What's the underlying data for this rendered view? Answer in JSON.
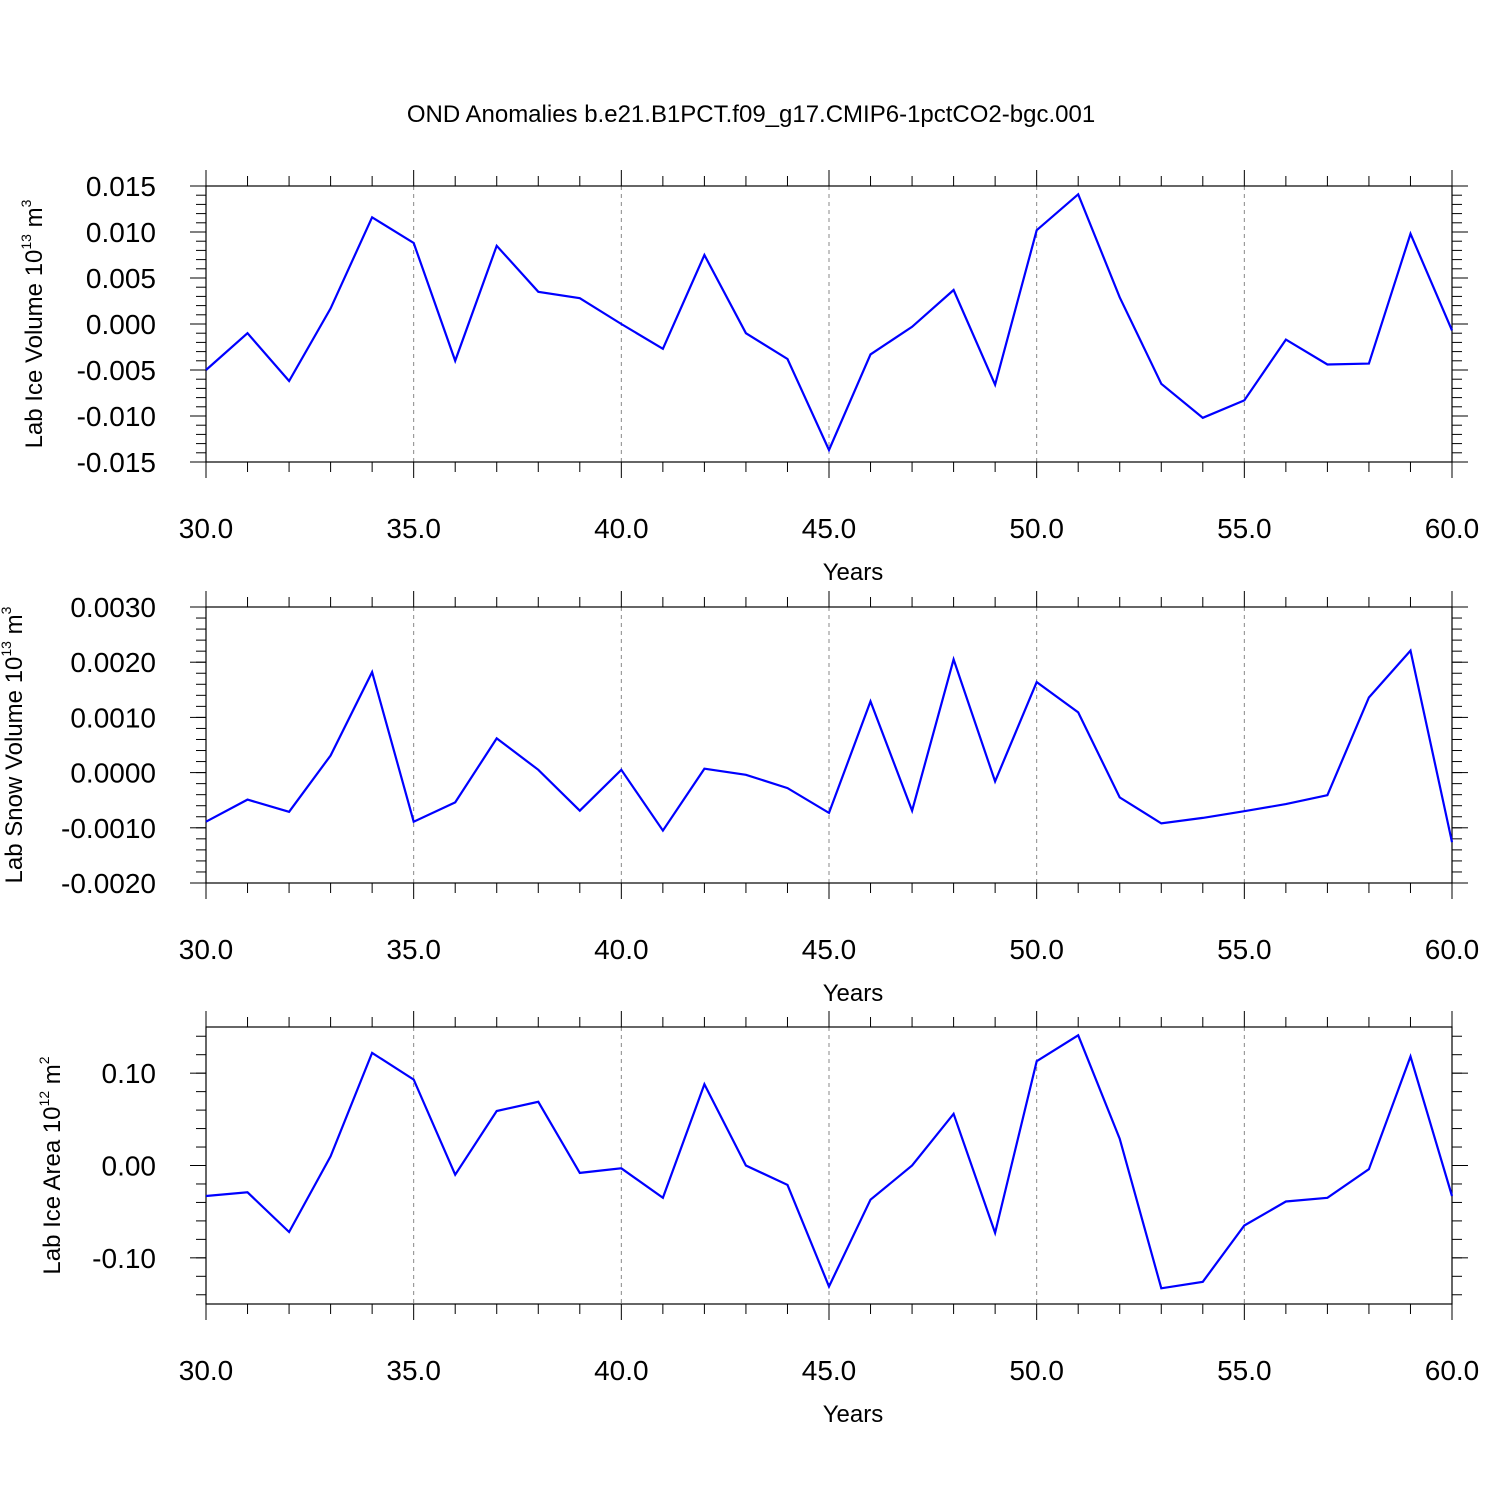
{
  "figure": {
    "title": "OND Anomalies b.e21.B1PCT.f09_g17.CMIP6-1pctCO2-bgc.001"
  },
  "chart_data": [
    {
      "type": "line",
      "ylabel": {
        "prefix": "Lab Ice Volume 10",
        "exponent": "13",
        "unit_base": " m",
        "unit_exp": "3"
      },
      "xlabel": "Years",
      "xlim": [
        30,
        60
      ],
      "ylim": [
        -0.015,
        0.015
      ],
      "xticks": [
        "30.0",
        "35.0",
        "40.0",
        "45.0",
        "50.0",
        "55.0",
        "60.0"
      ],
      "yticks": [
        {
          "value": 0.015,
          "label": "0.015"
        },
        {
          "value": 0.01,
          "label": "0.010"
        },
        {
          "value": 0.005,
          "label": "0.005"
        },
        {
          "value": 0.0,
          "label": "0.000"
        },
        {
          "value": -0.005,
          "label": "-0.005"
        },
        {
          "value": -0.01,
          "label": "-0.010"
        },
        {
          "value": -0.015,
          "label": "-0.015"
        }
      ],
      "grid": "dashed vertical at major x ticks",
      "line_color": "#0000ff",
      "x": [
        30,
        31,
        32,
        33,
        34,
        35,
        36,
        37,
        38,
        39,
        40,
        41,
        42,
        43,
        44,
        45,
        46,
        47,
        48,
        49,
        50,
        51,
        52,
        53,
        54,
        55,
        56,
        57,
        58,
        59,
        60
      ],
      "values": [
        -0.005,
        -0.001,
        -0.0062,
        0.0017,
        0.0116,
        0.0088,
        -0.004,
        0.0085,
        0.0035,
        0.0028,
        0.0,
        -0.0027,
        0.0075,
        -0.001,
        -0.0038,
        -0.0137,
        -0.0033,
        -0.0003,
        0.0037,
        -0.0066,
        0.0102,
        0.0141,
        0.0029,
        -0.0065,
        -0.0102,
        -0.0083,
        -0.0017,
        -0.0044,
        -0.0043,
        0.0098,
        -0.0007
      ]
    },
    {
      "type": "line",
      "ylabel": {
        "prefix": "Lab Snow Volume 10",
        "exponent": "13",
        "unit_base": " m",
        "unit_exp": "3"
      },
      "xlabel": "Years",
      "xlim": [
        30,
        60
      ],
      "ylim": [
        -0.002,
        0.003
      ],
      "xticks": [
        "30.0",
        "35.0",
        "40.0",
        "45.0",
        "50.0",
        "55.0",
        "60.0"
      ],
      "yticks": [
        {
          "value": 0.003,
          "label": "0.0030"
        },
        {
          "value": 0.002,
          "label": "0.0020"
        },
        {
          "value": 0.001,
          "label": "0.0010"
        },
        {
          "value": 0.0,
          "label": "0.0000"
        },
        {
          "value": -0.001,
          "label": "-0.0010"
        },
        {
          "value": -0.002,
          "label": "-0.0020"
        }
      ],
      "grid": "dashed vertical at major x ticks",
      "line_color": "#0000ff",
      "x": [
        30,
        31,
        32,
        33,
        34,
        35,
        36,
        37,
        38,
        39,
        40,
        41,
        42,
        43,
        44,
        45,
        46,
        47,
        48,
        49,
        50,
        51,
        52,
        53,
        54,
        55,
        56,
        57,
        58,
        59,
        60
      ],
      "values": [
        -0.00089,
        -0.00049,
        -0.00071,
        0.00031,
        0.00182,
        -0.00089,
        -0.00054,
        0.00062,
        5e-05,
        -0.00069,
        5e-05,
        -0.00105,
        7e-05,
        -4e-05,
        -0.00028,
        -0.00073,
        0.00129,
        -0.00069,
        0.00205,
        -0.00016,
        0.00164,
        0.00109,
        -0.00045,
        -0.00092,
        -0.00082,
        -0.0007,
        -0.00057,
        -0.00041,
        0.00136,
        0.00221,
        -0.00126
      ]
    },
    {
      "type": "line",
      "ylabel": {
        "prefix": "Lab Ice Area 10",
        "exponent": "12",
        "unit_base": " m",
        "unit_exp": "2"
      },
      "xlabel": "Years",
      "xlim": [
        30,
        60
      ],
      "ylim": [
        -0.15,
        0.15
      ],
      "xticks": [
        "30.0",
        "35.0",
        "40.0",
        "45.0",
        "50.0",
        "55.0",
        "60.0"
      ],
      "yticks": [
        {
          "value": 0.1,
          "label": "0.10"
        },
        {
          "value": 0.0,
          "label": "0.00"
        },
        {
          "value": -0.1,
          "label": "-0.10"
        }
      ],
      "grid": "dashed vertical at major x ticks",
      "line_color": "#0000ff",
      "x": [
        30,
        31,
        32,
        33,
        34,
        35,
        36,
        37,
        38,
        39,
        40,
        41,
        42,
        43,
        44,
        45,
        46,
        47,
        48,
        49,
        50,
        51,
        52,
        53,
        54,
        55,
        56,
        57,
        58,
        59,
        60
      ],
      "values": [
        -0.033,
        -0.029,
        -0.072,
        0.01,
        0.122,
        0.093,
        -0.01,
        0.059,
        0.069,
        -0.008,
        -0.003,
        -0.035,
        0.088,
        0.0,
        -0.021,
        -0.131,
        -0.037,
        0.0,
        0.056,
        -0.073,
        0.113,
        0.141,
        0.029,
        -0.133,
        -0.126,
        -0.065,
        -0.039,
        -0.035,
        -0.004,
        0.118,
        -0.033
      ]
    }
  ]
}
